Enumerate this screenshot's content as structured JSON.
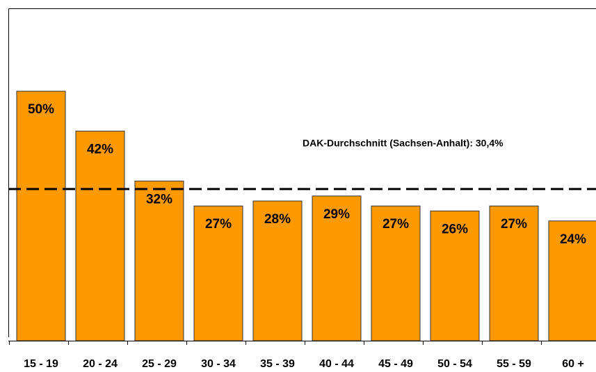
{
  "chart_data": {
    "type": "bar",
    "categories": [
      "15 - 19",
      "20 - 24",
      "25 - 29",
      "30 - 34",
      "35 - 39",
      "40 - 44",
      "45 - 49",
      "50 - 54",
      "55 - 59",
      "60 +"
    ],
    "values": [
      50,
      42,
      32,
      27,
      28,
      29,
      27,
      26,
      27,
      24
    ],
    "value_labels": [
      "50%",
      "42%",
      "32%",
      "27%",
      "28%",
      "29%",
      "27%",
      "26%",
      "27%",
      "24%"
    ],
    "color": "#ff9900",
    "ylim": [
      0,
      66.6
    ],
    "average": 30.4,
    "annotation": "DAK-Durchschnitt (Sachsen-Anhalt): 30,4%"
  }
}
